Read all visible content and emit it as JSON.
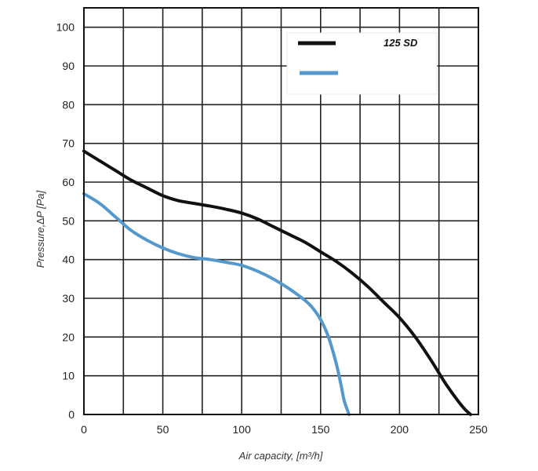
{
  "chart_data": {
    "type": "line",
    "xlabel": "Air capacity, [m³/h]",
    "ylabel": "Pressure,∆P [Pa]",
    "xlim": [
      0,
      250
    ],
    "ylim": [
      0,
      105
    ],
    "x_ticks": [
      0,
      50,
      100,
      150,
      200,
      250
    ],
    "y_ticks": [
      0,
      10,
      20,
      30,
      40,
      50,
      60,
      70,
      80,
      90,
      100
    ],
    "grid": true,
    "grid_step_x": 25,
    "grid_step_y": 10,
    "legend_position": "top-right",
    "series": [
      {
        "name": "125 SD",
        "color": "#111111",
        "x": [
          0,
          10,
          20,
          30,
          40,
          50,
          60,
          70,
          80,
          90,
          100,
          110,
          120,
          130,
          140,
          150,
          160,
          170,
          180,
          190,
          200,
          210,
          220,
          230,
          240,
          245
        ],
        "y": [
          68,
          65.5,
          63,
          60.5,
          58.5,
          56.5,
          55.2,
          54.5,
          53.8,
          53,
          52,
          50.5,
          48.5,
          46.5,
          44.5,
          42,
          39.5,
          36.5,
          33,
          29,
          25,
          20,
          14,
          7.5,
          2,
          0
        ]
      },
      {
        "name": "",
        "color": "#5599cc",
        "x": [
          0,
          10,
          20,
          30,
          40,
          50,
          60,
          70,
          80,
          90,
          100,
          110,
          120,
          130,
          140,
          145,
          150,
          155,
          160,
          163,
          165,
          168
        ],
        "y": [
          57,
          54.5,
          51,
          47.5,
          45,
          43,
          41.5,
          40.5,
          40,
          39.3,
          38.5,
          37,
          35,
          32.5,
          29.5,
          27.5,
          24.5,
          20,
          13,
          7.5,
          3.5,
          0
        ]
      }
    ]
  }
}
